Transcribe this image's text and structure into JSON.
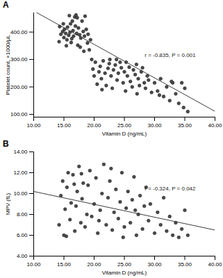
{
  "chart_data": [
    {
      "type": "scatter",
      "title": "A",
      "x_label": "Vitamin D (ng/mL)",
      "y_label": "Platelet count, ×1000/µL",
      "annotation": "r = -0.835, P = 0.001",
      "color": "#4a4a4a",
      "marker": "circle",
      "xlim": [
        10,
        40
      ],
      "ylim": [
        90,
        470
      ],
      "xticks": [
        {
          "value": 10,
          "label": "10.00"
        },
        {
          "value": 15,
          "label": "15.00"
        },
        {
          "value": 20,
          "label": "20.00"
        },
        {
          "value": 25,
          "label": "25.00"
        },
        {
          "value": 30,
          "label": "30.00"
        },
        {
          "value": 35,
          "label": "35.00"
        },
        {
          "value": 40,
          "label": "40.00"
        }
      ],
      "yticks": [
        {
          "value": 100,
          "label": "100.00"
        },
        {
          "value": 200,
          "label": "200.00"
        },
        {
          "value": 300,
          "label": "300.00"
        },
        {
          "value": 400,
          "label": "400.00"
        }
      ],
      "x": [
        14.2,
        14.5,
        14.8,
        15.0,
        15.1,
        15.3,
        15.5,
        15.6,
        15.8,
        16.0,
        16.1,
        16.3,
        16.5,
        16.6,
        16.8,
        17.0,
        17.1,
        17.3,
        17.4,
        17.6,
        17.8,
        18.0,
        18.2,
        18.4,
        18.5,
        18.7,
        18.9,
        19.0,
        19.2,
        19.4,
        14.3,
        14.9,
        15.4,
        16.2,
        16.9,
        17.7,
        18.3,
        15.9,
        16.4,
        17.2,
        19.6,
        19.8,
        20.0,
        20.2,
        20.5,
        20.8,
        21.0,
        21.2,
        21.5,
        21.8,
        22.0,
        22.3,
        22.5,
        22.8,
        23.0,
        23.2,
        23.5,
        23.8,
        24.0,
        24.3,
        24.5,
        24.8,
        25.0,
        25.3,
        25.5,
        25.8,
        26.0,
        26.3,
        26.5,
        26.8,
        27.0,
        27.3,
        27.5,
        27.8,
        28.0,
        28.3,
        28.5,
        28.8,
        29.0,
        29.5,
        21.3,
        22.6,
        25.2,
        27.1,
        23.7,
        30.0,
        30.5,
        31.0,
        31.5,
        32.0,
        32.5,
        33.0,
        33.5,
        34.0,
        34.5,
        35.0,
        35.5,
        30.8,
        32.8,
        34.8
      ],
      "values": [
        365,
        392,
        402,
        380,
        410,
        395,
        372,
        418,
        388,
        399,
        430,
        376,
        405,
        385,
        455,
        462,
        395,
        352,
        415,
        390,
        378,
        440,
        402,
        385,
        458,
        410,
        360,
        392,
        335,
        372,
        420,
        430,
        350,
        362,
        422,
        345,
        330,
        460,
        440,
        452,
        300,
        265,
        240,
        290,
        210,
        255,
        275,
        230,
        295,
        250,
        205,
        268,
        285,
        240,
        195,
        262,
        280,
        225,
        250,
        290,
        270,
        215,
        255,
        290,
        240,
        272,
        220,
        200,
        262,
        245,
        282,
        230,
        205,
        255,
        270,
        215,
        195,
        240,
        225,
        180,
        190,
        300,
        185,
        175,
        300,
        215,
        185,
        230,
        165,
        200,
        150,
        215,
        175,
        140,
        215,
        195,
        110,
        170,
        220,
        125
      ],
      "fit_line": {
        "x": [
          10,
          40
        ],
        "values": [
          477,
          111
        ]
      }
    },
    {
      "type": "scatter",
      "title": "B",
      "x_label": "Vitamin D (ng/mL)",
      "y_label": "MPV (fL)",
      "annotation": "r = -0.324, P = 0.042",
      "color": "#4a4a4a",
      "marker": "circle",
      "xlim": [
        10,
        40
      ],
      "ylim": [
        4,
        14
      ],
      "xticks": [
        {
          "value": 10,
          "label": "10.00"
        },
        {
          "value": 15,
          "label": "15.00"
        },
        {
          "value": 20,
          "label": "20.00"
        },
        {
          "value": 25,
          "label": "25.00"
        },
        {
          "value": 30,
          "label": "30.00"
        },
        {
          "value": 35,
          "label": "35.00"
        },
        {
          "value": 40,
          "label": "40.00"
        }
      ],
      "yticks": [
        {
          "value": 4,
          "label": "4.00"
        },
        {
          "value": 6,
          "label": "6.00"
        },
        {
          "value": 8,
          "label": "8.00"
        },
        {
          "value": 10,
          "label": "10.00"
        },
        {
          "value": 12,
          "label": "12.00"
        },
        {
          "value": 14,
          "label": "14.00"
        }
      ],
      "x": [
        14.2,
        14.5,
        14.8,
        15.0,
        15.2,
        15.5,
        15.7,
        16.0,
        16.2,
        16.5,
        16.8,
        17.0,
        17.2,
        17.5,
        17.8,
        18.0,
        18.2,
        18.5,
        18.8,
        19.0,
        19.3,
        19.6,
        20.0,
        20.3,
        20.6,
        21.0,
        21.3,
        21.6,
        22.0,
        22.3,
        22.6,
        23.0,
        23.3,
        23.6,
        24.0,
        24.3,
        24.6,
        25.0,
        25.3,
        25.6,
        26.0,
        26.3,
        26.6,
        27.0,
        27.3,
        27.6,
        28.0,
        28.3,
        28.6,
        29.0,
        29.3,
        30.0,
        30.5,
        31.0,
        31.5,
        32.0,
        32.5,
        33.0,
        33.5,
        34.0,
        34.5,
        35.0,
        35.5,
        15.4,
        16.7,
        17.9,
        20.8,
        22.8,
        24.8,
        26.8
      ],
      "values": [
        7.0,
        9.8,
        11.2,
        6.0,
        8.5,
        10.6,
        12.0,
        7.5,
        9.1,
        11.8,
        6.4,
        8.8,
        10.2,
        12.6,
        7.2,
        9.5,
        11.0,
        6.8,
        8.0,
        10.8,
        12.2,
        7.8,
        9.0,
        11.5,
        6.2,
        8.4,
        10.0,
        12.8,
        7.0,
        9.6,
        11.2,
        6.5,
        8.2,
        10.4,
        7.6,
        9.2,
        12.0,
        6.8,
        8.6,
        10.2,
        7.2,
        9.4,
        11.6,
        6.0,
        8.0,
        9.8,
        6.6,
        8.8,
        10.6,
        7.4,
        9.0,
        6.2,
        8.2,
        7.0,
        9.6,
        6.4,
        7.8,
        6.0,
        7.2,
        5.8,
        6.6,
        8.4,
        6.0,
        5.9,
        10.9,
        11.9,
        7.4,
        12.4,
        5.8,
        8.4
      ],
      "fit_line": {
        "x": [
          10,
          40
        ],
        "values": [
          10.2,
          6.5
        ]
      }
    }
  ]
}
